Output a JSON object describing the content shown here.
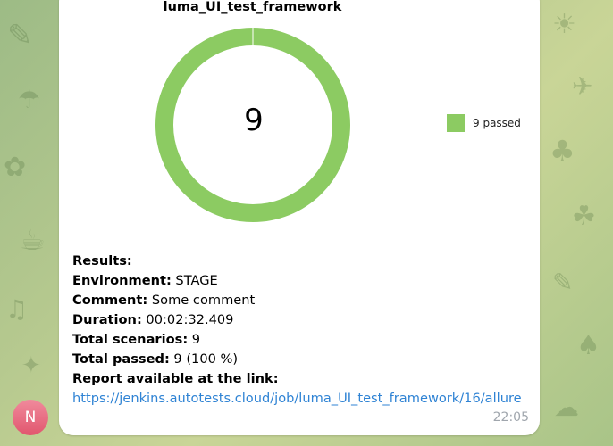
{
  "message": {
    "sender_initial": "N",
    "time": "22:05",
    "results_heading": "Results:",
    "fields": [
      {
        "label": "Environment:",
        "value": " STAGE"
      },
      {
        "label": "Comment:",
        "value": " Some comment"
      },
      {
        "label": "Duration:",
        "value": " 00:02:32.409"
      },
      {
        "label": "Total scenarios:",
        "value": " 9"
      },
      {
        "label": "Total passed:",
        "value": " 9 (100 %)"
      }
    ],
    "report_label": "Report available at the link:",
    "report_link": "https://jenkins.autotests.cloud/job/luma_UI_test_framework/16/allure"
  },
  "chart_data": {
    "type": "pie",
    "title": "luma_UI_test_framework",
    "center_label": "9",
    "slices": [
      {
        "label": "9 passed",
        "value": 9,
        "color": "#8ccb62"
      }
    ],
    "legend_position": "right"
  },
  "colors": {
    "avatar": "#e1566e",
    "link": "#2f83d4",
    "passed": "#8ccb62"
  }
}
